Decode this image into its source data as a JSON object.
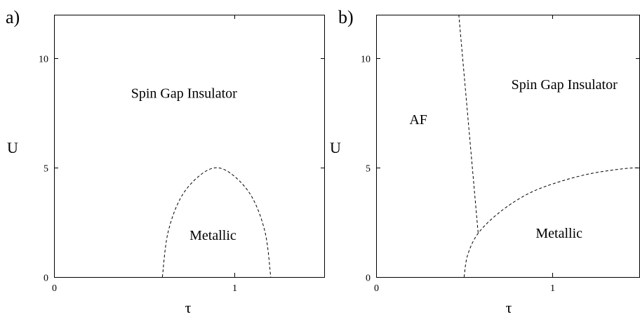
{
  "chart_data": [
    {
      "panel_label": "a)",
      "type": "line",
      "xlabel": "τ",
      "ylabel": "U",
      "xlim": [
        0,
        1.5
      ],
      "ylim": [
        0,
        12
      ],
      "xticks": [
        0,
        1
      ],
      "yticks": [
        0,
        5,
        10
      ],
      "grid": false,
      "regions": [
        {
          "label": "Spin Gap Insulator",
          "x": 0.72,
          "y": 8.2
        },
        {
          "label": "Metallic",
          "x": 0.88,
          "y": 1.7
        }
      ],
      "boundaries": [
        {
          "style": "dashed",
          "x": [
            0.6,
            0.63,
            0.7,
            0.8,
            0.9,
            1.0,
            1.1,
            1.17,
            1.2
          ],
          "y": [
            0.0,
            2.0,
            3.6,
            4.6,
            5.0,
            4.6,
            3.6,
            2.0,
            0.0
          ]
        }
      ]
    },
    {
      "panel_label": "b)",
      "type": "line",
      "xlabel": "τ",
      "ylabel": "U",
      "xlim": [
        0,
        1.5
      ],
      "ylim": [
        0,
        12
      ],
      "xticks": [
        0,
        1
      ],
      "yticks": [
        0,
        5,
        10
      ],
      "grid": false,
      "regions": [
        {
          "label": "AF",
          "x": 0.24,
          "y": 7.0
        },
        {
          "label": "Spin Gap Insulator",
          "x": 1.07,
          "y": 8.6
        },
        {
          "label": "Metallic",
          "x": 1.04,
          "y": 1.8
        }
      ],
      "boundaries": [
        {
          "style": "dashed",
          "x": [
            0.47,
            0.58
          ],
          "y": [
            12.0,
            2.0
          ]
        },
        {
          "style": "dashed",
          "x": [
            0.5,
            0.52,
            0.58,
            0.7,
            0.85,
            1.0,
            1.2,
            1.4,
            1.5
          ],
          "y": [
            0.0,
            1.0,
            2.0,
            2.95,
            3.75,
            4.25,
            4.7,
            4.95,
            5.0
          ]
        }
      ]
    }
  ]
}
